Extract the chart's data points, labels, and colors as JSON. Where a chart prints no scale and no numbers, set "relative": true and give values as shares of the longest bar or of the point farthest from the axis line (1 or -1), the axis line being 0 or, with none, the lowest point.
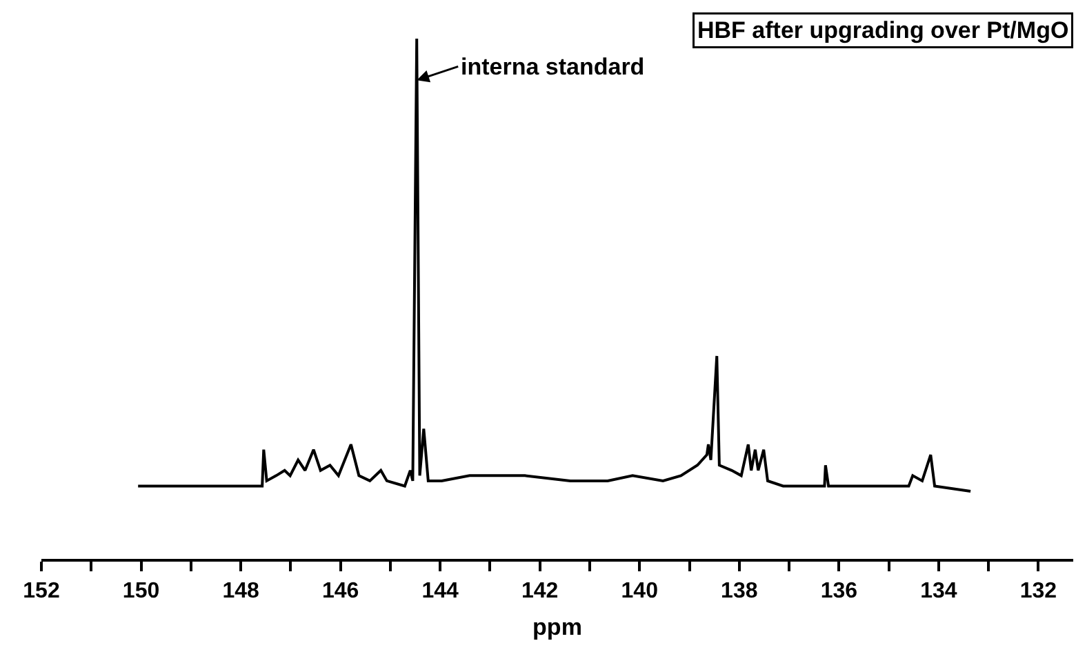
{
  "chart_data": {
    "type": "line",
    "title": "HBF after upgrading over Pt/MgO",
    "xlabel": "ppm",
    "relative": true,
    "grid": false,
    "marker": "none",
    "line_style": "solid",
    "xlim": [
      152,
      131.3
    ],
    "xticks": [
      152,
      {
        "value": 151,
        "label": null
      },
      150,
      {
        "value": 149,
        "label": null
      },
      148,
      {
        "value": 147,
        "label": null
      },
      146,
      {
        "value": 145,
        "label": null
      },
      144,
      {
        "value": 143,
        "label": null
      },
      142,
      {
        "value": 141,
        "label": null
      },
      140,
      {
        "value": 139,
        "label": null
      },
      138,
      {
        "value": 137,
        "label": null
      },
      136,
      {
        "value": 135,
        "label": null
      },
      134,
      {
        "value": 133,
        "label": null
      },
      132
    ],
    "annotations": [
      {
        "text": "interna standard",
        "x": 144.47,
        "y": 0.92
      }
    ],
    "series": [
      {
        "color": "#000000",
        "x": [
          150.06,
          148.68,
          147.57,
          147.54,
          147.48,
          147.29,
          147.12,
          147.01,
          146.85,
          146.71,
          146.54,
          146.4,
          146.21,
          146.04,
          145.79,
          145.63,
          145.41,
          145.19,
          145.07,
          144.71,
          144.6,
          144.55,
          144.47,
          144.41,
          144.33,
          144.24,
          143.97,
          143.41,
          142.3,
          141.39,
          140.64,
          140.14,
          139.53,
          139.17,
          138.84,
          138.65,
          138.62,
          138.57,
          138.45,
          138.4,
          138.15,
          137.96,
          137.82,
          137.76,
          137.68,
          137.62,
          137.51,
          137.43,
          137.12,
          136.29,
          136.27,
          136.21,
          135.38,
          134.6,
          134.52,
          134.33,
          134.16,
          134.08,
          133.36
        ],
        "values": [
          0.14,
          0.14,
          0.14,
          0.21,
          0.15,
          0.16,
          0.17,
          0.16,
          0.19,
          0.17,
          0.21,
          0.17,
          0.18,
          0.16,
          0.22,
          0.16,
          0.15,
          0.17,
          0.15,
          0.14,
          0.17,
          0.15,
          1.0,
          0.16,
          0.25,
          0.15,
          0.15,
          0.16,
          0.16,
          0.15,
          0.15,
          0.16,
          0.15,
          0.16,
          0.18,
          0.2,
          0.22,
          0.19,
          0.39,
          0.18,
          0.17,
          0.16,
          0.22,
          0.17,
          0.21,
          0.17,
          0.21,
          0.15,
          0.14,
          0.14,
          0.18,
          0.14,
          0.14,
          0.14,
          0.16,
          0.15,
          0.2,
          0.14,
          0.13
        ]
      }
    ]
  }
}
